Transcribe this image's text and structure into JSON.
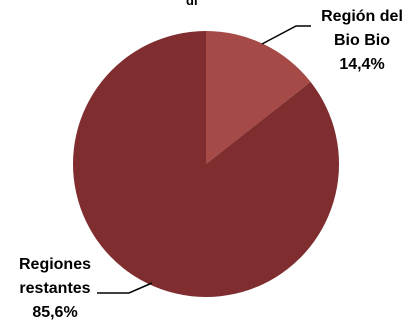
{
  "chart_data": {
    "type": "pie",
    "title_fragment": "gi",
    "slices": [
      {
        "label_line1": "Región del",
        "label_line2": "Bio Bio",
        "value": 14.4,
        "value_label": "14,4%",
        "color": "#a54a47"
      },
      {
        "label_line1": "Regiones",
        "label_line2": "restantes",
        "value": 85.6,
        "value_label": "85,6%",
        "color": "#7f2d2f"
      }
    ]
  }
}
